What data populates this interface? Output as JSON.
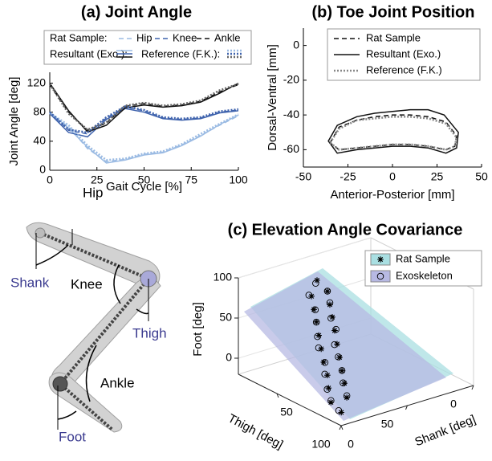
{
  "chart_data": [
    {
      "type": "line",
      "title": "(a) Joint Angle",
      "xlabel": "Gait Cycle [%]",
      "ylabel": "Joint Angle [deg]",
      "x": [
        0,
        10,
        20,
        30,
        40,
        50,
        60,
        70,
        80,
        90,
        100
      ],
      "groups": [
        {
          "label": "Rat Sample:",
          "style": "dashed",
          "series": [
            {
              "name": "Hip",
              "color": "#9bbbe3",
              "values": [
                78,
                60,
                30,
                12,
                15,
                22,
                25,
                35,
                48,
                62,
                75
              ]
            },
            {
              "name": "Knee",
              "color": "#3f63ad",
              "values": [
                80,
                55,
                50,
                72,
                87,
                82,
                72,
                70,
                72,
                80,
                83
              ]
            },
            {
              "name": "Ankle",
              "color": "#111111",
              "values": [
                118,
                80,
                55,
                65,
                88,
                92,
                88,
                90,
                95,
                108,
                118
              ]
            }
          ]
        },
        {
          "label": "Resultant (Exo.):",
          "style": "solid",
          "series": [
            {
              "color": "#9bbbe3",
              "values": [
                80,
                58,
                32,
                10,
                14,
                21,
                24,
                34,
                47,
                63,
                76
              ]
            },
            {
              "color": "#3f63ad",
              "values": [
                78,
                52,
                46,
                70,
                85,
                80,
                71,
                69,
                71,
                79,
                82
              ]
            },
            {
              "color": "#111111",
              "values": [
                120,
                82,
                53,
                62,
                86,
                90,
                87,
                89,
                94,
                106,
                120
              ]
            }
          ]
        },
        {
          "label": "Reference (F.K.):",
          "style": "dotted",
          "series": [
            {
              "color": "#9bbbe3",
              "values": [
                79,
                62,
                34,
                14,
                16,
                23,
                26,
                36,
                50,
                64,
                77
              ]
            },
            {
              "color": "#3f63ad",
              "values": [
                80,
                56,
                52,
                73,
                88,
                83,
                73,
                71,
                73,
                81,
                84
              ]
            },
            {
              "color": "#666666",
              "values": [
                119,
                78,
                56,
                66,
                89,
                93,
                89,
                91,
                96,
                110,
                119
              ]
            }
          ]
        }
      ],
      "xlim": [
        0,
        100
      ],
      "xticks": [
        0,
        25,
        50,
        75,
        100
      ],
      "ylim": [
        0,
        135
      ],
      "yticks": [
        0,
        40,
        80,
        120
      ]
    },
    {
      "type": "line",
      "title": "(b) Toe Joint Position",
      "xlabel": "Anterior-Posterior [mm]",
      "ylabel": "Dorsal-Ventral [mm]",
      "closed": true,
      "legend": "upper right",
      "series": [
        {
          "name": "Rat Sample",
          "style": "dashed",
          "color": "#111111",
          "x": [
            -35,
            -30,
            -20,
            -10,
            0,
            10,
            20,
            30,
            36,
            35,
            30,
            20,
            10,
            0,
            -10,
            -20,
            -30
          ],
          "values": [
            -56,
            -47,
            -43,
            -41,
            -40,
            -40,
            -41,
            -44,
            -52,
            -58,
            -60,
            -58,
            -57,
            -57,
            -58,
            -59,
            -60
          ]
        },
        {
          "name": "Resultant (Exo.)",
          "style": "solid",
          "color": "#111111",
          "x": [
            -36,
            -31,
            -20,
            -10,
            0,
            10,
            20,
            29,
            37,
            36,
            30,
            20,
            10,
            0,
            -10,
            -20,
            -31
          ],
          "values": [
            -55,
            -46,
            -41,
            -39,
            -38,
            -37,
            -37,
            -40,
            -50,
            -59,
            -62,
            -59,
            -58,
            -58,
            -59,
            -60,
            -62
          ]
        },
        {
          "name": "Reference (F.K.)",
          "style": "dotted",
          "color": "#888888",
          "x": [
            -35,
            -30,
            -20,
            -10,
            0,
            10,
            20,
            30,
            36,
            35,
            30,
            20,
            10,
            0,
            -10,
            -20,
            -30
          ],
          "values": [
            -56,
            -48,
            -43,
            -42,
            -41,
            -41,
            -42,
            -45,
            -53,
            -58,
            -60,
            -58,
            -57,
            -57,
            -58,
            -59,
            -60
          ]
        }
      ],
      "xlim": [
        -50,
        50
      ],
      "xticks": [
        -50,
        -25,
        0,
        25,
        50
      ],
      "ylim": [
        -70,
        10
      ],
      "yticks": [
        -60,
        -40,
        -20,
        0
      ]
    },
    {
      "type": "scatter3d",
      "title": "(c) Elevation Angle Covariance",
      "xlabel": "Thigh [deg]",
      "ylabel": "Shank [deg]",
      "zlabel": "Foot [deg]",
      "xlim": [
        0,
        80
      ],
      "ylim": [
        0,
        100
      ],
      "zlim": [
        -20,
        100
      ],
      "xticks": [
        0,
        50
      ],
      "yticks": [
        0,
        50,
        100
      ],
      "zticks": [
        0,
        50,
        100
      ],
      "legend": "upper right",
      "series": [
        {
          "name": "Rat Sample",
          "marker": "asterisk",
          "color": "#a9dfe2",
          "x": [
            5,
            10,
            16,
            21,
            27,
            32,
            38,
            44,
            49,
            54,
            60,
            54,
            49,
            44,
            38,
            32,
            27,
            21,
            16,
            10
          ],
          "y": [
            95,
            98,
            94,
            90,
            87,
            84,
            80,
            76,
            73,
            70,
            60,
            58,
            61,
            64,
            68,
            72,
            75,
            79,
            82,
            86
          ],
          "values": [
            -10,
            0,
            11,
            21,
            31,
            42,
            52,
            62,
            72,
            83,
            93,
            83,
            72,
            62,
            52,
            42,
            31,
            21,
            11,
            0
          ]
        },
        {
          "name": "Exoskeleton",
          "marker": "circle",
          "color": "#b7b9e3",
          "x": [
            6,
            11,
            16,
            22,
            27,
            33,
            38,
            43,
            49,
            55,
            59,
            55,
            50,
            44,
            38,
            33,
            27,
            22,
            16,
            11
          ],
          "y": [
            96,
            97,
            95,
            91,
            86,
            85,
            81,
            77,
            72,
            71,
            62,
            57,
            60,
            65,
            67,
            73,
            76,
            78,
            83,
            85
          ],
          "values": [
            -8,
            1,
            10,
            22,
            30,
            43,
            51,
            63,
            71,
            84,
            91,
            82,
            73,
            61,
            53,
            41,
            32,
            20,
            12,
            1
          ]
        }
      ]
    }
  ],
  "diagram": {
    "labels": [
      "Hip",
      "Shank",
      "Knee",
      "Thigh",
      "Ankle",
      "Foot"
    ]
  }
}
